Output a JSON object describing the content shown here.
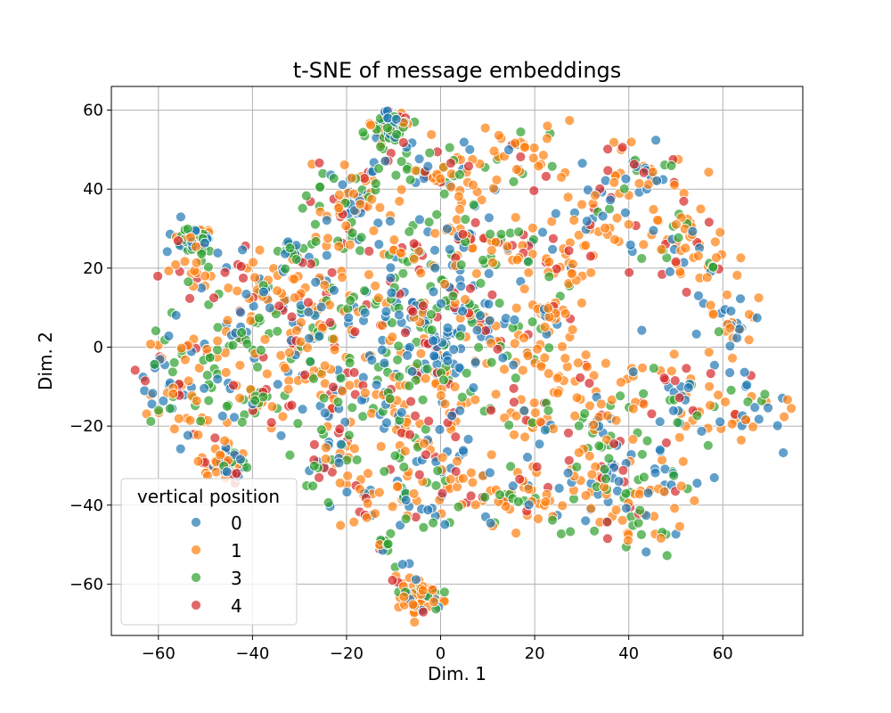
{
  "chart_data": {
    "type": "scatter",
    "title": "t-SNE of message embeddings",
    "xlabel": "Dim. 1",
    "ylabel": "Dim. 2",
    "xlim": [
      -70,
      77
    ],
    "ylim": [
      -73,
      66
    ],
    "xticks": [
      -60,
      -40,
      -20,
      0,
      20,
      40,
      60
    ],
    "yticks": [
      -60,
      -40,
      -20,
      0,
      20,
      40,
      60
    ],
    "xtick_labels": [
      "−60",
      "−40",
      "−20",
      "0",
      "20",
      "40",
      "60"
    ],
    "ytick_labels": [
      "−60",
      "−40",
      "−20",
      "0",
      "20",
      "40",
      "60"
    ],
    "grid": true,
    "legend": {
      "title": "vertical position",
      "placement": "lower-left"
    },
    "series": [
      {
        "name": "0",
        "color": "#1f77b4"
      },
      {
        "name": "1",
        "color": "#ff7f0e"
      },
      {
        "name": "3",
        "color": "#2ca02c"
      },
      {
        "name": "4",
        "color": "#d62728"
      }
    ],
    "clusters": [
      {
        "center": [
          -52,
          27
        ],
        "spread": 2.0,
        "count": 70,
        "mix": [
          0.35,
          0.15,
          0.45,
          0.05
        ]
      },
      {
        "center": [
          -11,
          56
        ],
        "spread": 2.2,
        "count": 70,
        "mix": [
          0.35,
          0.2,
          0.4,
          0.05
        ]
      },
      {
        "center": [
          -4,
          -64
        ],
        "spread": 2.0,
        "count": 70,
        "mix": [
          0.1,
          0.75,
          0.1,
          0.05
        ]
      },
      {
        "center": [
          -46,
          -29
        ],
        "spread": 2.2,
        "count": 60,
        "mix": [
          0.2,
          0.45,
          0.15,
          0.2
        ]
      },
      {
        "center": [
          -32,
          24
        ],
        "spread": 1.2,
        "count": 20,
        "mix": [
          0.3,
          0.1,
          0.55,
          0.05
        ]
      },
      {
        "center": [
          23,
          9
        ],
        "spread": 1.2,
        "count": 25,
        "mix": [
          0.2,
          0.55,
          0.2,
          0.05
        ]
      },
      {
        "center": [
          -12,
          -50
        ],
        "spread": 1.0,
        "count": 12,
        "mix": [
          0.15,
          0.3,
          0.5,
          0.05
        ]
      },
      {
        "center": [
          -20,
          38
        ],
        "spread": 4.0,
        "count": 45,
        "mix": [
          0.25,
          0.35,
          0.25,
          0.15
        ]
      },
      {
        "center": [
          2,
          45
        ],
        "spread": 5.0,
        "count": 50,
        "mix": [
          0.2,
          0.45,
          0.25,
          0.1
        ]
      },
      {
        "center": [
          18,
          48
        ],
        "spread": 4.5,
        "count": 35,
        "mix": [
          0.2,
          0.45,
          0.2,
          0.15
        ]
      },
      {
        "center": [
          42,
          45
        ],
        "spread": 5.0,
        "count": 45,
        "mix": [
          0.3,
          0.4,
          0.15,
          0.15
        ]
      },
      {
        "center": [
          33,
          33
        ],
        "spread": 4.5,
        "count": 40,
        "mix": [
          0.2,
          0.6,
          0.1,
          0.1
        ]
      },
      {
        "center": [
          48,
          28
        ],
        "spread": 5.0,
        "count": 45,
        "mix": [
          0.2,
          0.5,
          0.15,
          0.15
        ]
      },
      {
        "center": [
          26,
          20
        ],
        "spread": 4.0,
        "count": 30,
        "mix": [
          0.15,
          0.6,
          0.1,
          0.15
        ]
      },
      {
        "center": [
          -22,
          28
        ],
        "spread": 5.0,
        "count": 45,
        "mix": [
          0.25,
          0.35,
          0.25,
          0.15
        ]
      },
      {
        "center": [
          -8,
          25
        ],
        "spread": 4.0,
        "count": 30,
        "mix": [
          0.2,
          0.35,
          0.3,
          0.15
        ]
      },
      {
        "center": [
          6,
          30
        ],
        "spread": 4.5,
        "count": 40,
        "mix": [
          0.25,
          0.4,
          0.25,
          0.1
        ]
      },
      {
        "center": [
          16,
          25
        ],
        "spread": 4.0,
        "count": 30,
        "mix": [
          0.2,
          0.35,
          0.3,
          0.15
        ]
      },
      {
        "center": [
          -5,
          8
        ],
        "spread": 4.0,
        "count": 30,
        "mix": [
          0.4,
          0.25,
          0.25,
          0.1
        ]
      },
      {
        "center": [
          2,
          14
        ],
        "spread": 5.0,
        "count": 40,
        "mix": [
          0.45,
          0.2,
          0.25,
          0.1
        ]
      },
      {
        "center": [
          -12,
          12
        ],
        "spread": 4.0,
        "count": 30,
        "mix": [
          0.3,
          0.3,
          0.25,
          0.15
        ]
      },
      {
        "center": [
          -25,
          10
        ],
        "spread": 5.5,
        "count": 50,
        "mix": [
          0.25,
          0.35,
          0.2,
          0.2
        ]
      },
      {
        "center": [
          -38,
          15
        ],
        "spread": 5.0,
        "count": 40,
        "mix": [
          0.3,
          0.35,
          0.2,
          0.15
        ]
      },
      {
        "center": [
          8,
          5
        ],
        "spread": 5.0,
        "count": 45,
        "mix": [
          0.55,
          0.2,
          0.15,
          0.1
        ]
      },
      {
        "center": [
          20,
          0
        ],
        "spread": 5.0,
        "count": 40,
        "mix": [
          0.2,
          0.5,
          0.2,
          0.1
        ]
      },
      {
        "center": [
          -45,
          3
        ],
        "spread": 5.5,
        "count": 45,
        "mix": [
          0.25,
          0.3,
          0.35,
          0.1
        ]
      },
      {
        "center": [
          -57,
          -2
        ],
        "spread": 4.0,
        "count": 30,
        "mix": [
          0.3,
          0.3,
          0.25,
          0.15
        ]
      },
      {
        "center": [
          -30,
          2
        ],
        "spread": 5.0,
        "count": 40,
        "mix": [
          0.3,
          0.3,
          0.2,
          0.2
        ]
      },
      {
        "center": [
          -8,
          -3
        ],
        "spread": 5.0,
        "count": 40,
        "mix": [
          0.3,
          0.35,
          0.25,
          0.1
        ]
      },
      {
        "center": [
          0,
          -1
        ],
        "spread": 3.0,
        "count": 25,
        "mix": [
          0.7,
          0.1,
          0.1,
          0.1
        ]
      },
      {
        "center": [
          -55,
          -15
        ],
        "spread": 5.0,
        "count": 45,
        "mix": [
          0.25,
          0.35,
          0.2,
          0.2
        ]
      },
      {
        "center": [
          -40,
          -12
        ],
        "spread": 5.0,
        "count": 45,
        "mix": [
          0.25,
          0.3,
          0.3,
          0.15
        ]
      },
      {
        "center": [
          -25,
          -12
        ],
        "spread": 5.0,
        "count": 45,
        "mix": [
          0.25,
          0.3,
          0.3,
          0.15
        ]
      },
      {
        "center": [
          -12,
          -14
        ],
        "spread": 4.5,
        "count": 35,
        "mix": [
          0.25,
          0.35,
          0.25,
          0.15
        ]
      },
      {
        "center": [
          4,
          -13
        ],
        "spread": 5.0,
        "count": 45,
        "mix": [
          0.2,
          0.4,
          0.25,
          0.15
        ]
      },
      {
        "center": [
          -5,
          -25
        ],
        "spread": 5.0,
        "count": 45,
        "mix": [
          0.25,
          0.4,
          0.2,
          0.15
        ]
      },
      {
        "center": [
          -22,
          -27
        ],
        "spread": 4.5,
        "count": 35,
        "mix": [
          0.25,
          0.3,
          0.3,
          0.15
        ]
      },
      {
        "center": [
          -18,
          -38
        ],
        "spread": 4.0,
        "count": 25,
        "mix": [
          0.2,
          0.4,
          0.2,
          0.2
        ]
      },
      {
        "center": [
          -5,
          -38
        ],
        "spread": 4.5,
        "count": 30,
        "mix": [
          0.3,
          0.35,
          0.25,
          0.1
        ]
      },
      {
        "center": [
          8,
          -35
        ],
        "spread": 5.0,
        "count": 45,
        "mix": [
          0.25,
          0.4,
          0.25,
          0.1
        ]
      },
      {
        "center": [
          20,
          -38
        ],
        "spread": 5.0,
        "count": 40,
        "mix": [
          0.2,
          0.55,
          0.15,
          0.1
        ]
      },
      {
        "center": [
          34,
          -35
        ],
        "spread": 5.0,
        "count": 40,
        "mix": [
          0.25,
          0.5,
          0.15,
          0.1
        ]
      },
      {
        "center": [
          45,
          -32
        ],
        "spread": 5.0,
        "count": 40,
        "mix": [
          0.3,
          0.4,
          0.2,
          0.1
        ]
      },
      {
        "center": [
          42,
          -45
        ],
        "spread": 4.0,
        "count": 25,
        "mix": [
          0.3,
          0.2,
          0.4,
          0.1
        ]
      },
      {
        "center": [
          35,
          -20
        ],
        "spread": 5.0,
        "count": 40,
        "mix": [
          0.25,
          0.4,
          0.2,
          0.15
        ]
      },
      {
        "center": [
          50,
          -12
        ],
        "spread": 5.0,
        "count": 40,
        "mix": [
          0.3,
          0.4,
          0.15,
          0.15
        ]
      },
      {
        "center": [
          64,
          -14
        ],
        "spread": 4.5,
        "count": 40,
        "mix": [
          0.3,
          0.4,
          0.15,
          0.15
        ]
      },
      {
        "center": [
          62,
          5
        ],
        "spread": 4.0,
        "count": 30,
        "mix": [
          0.5,
          0.35,
          0.05,
          0.1
        ]
      },
      {
        "center": [
          20,
          -20
        ],
        "spread": 3.5,
        "count": 25,
        "mix": [
          0.2,
          0.5,
          0.15,
          0.15
        ]
      },
      {
        "center": [
          30,
          -8
        ],
        "spread": 4.5,
        "count": 30,
        "mix": [
          0.2,
          0.55,
          0.15,
          0.1
        ]
      },
      {
        "center": [
          -12,
          44
        ],
        "spread": 4.0,
        "count": 25,
        "mix": [
          0.2,
          0.3,
          0.35,
          0.15
        ]
      },
      {
        "center": [
          -50,
          18
        ],
        "spread": 4.0,
        "count": 25,
        "mix": [
          0.2,
          0.35,
          0.3,
          0.15
        ]
      },
      {
        "center": [
          -8,
          -58
        ],
        "spread": 2.0,
        "count": 8,
        "mix": [
          0.7,
          0.1,
          0.1,
          0.1
        ]
      },
      {
        "center": [
          56,
          20
        ],
        "spread": 3.5,
        "count": 20,
        "mix": [
          0.3,
          0.45,
          0.15,
          0.1
        ]
      }
    ]
  }
}
